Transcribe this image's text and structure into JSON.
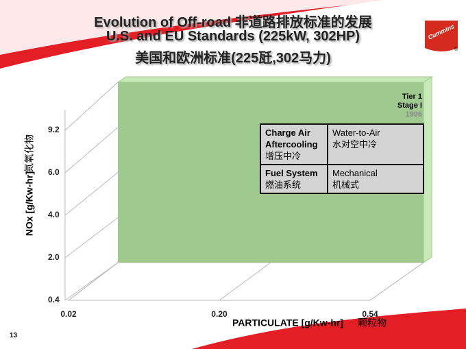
{
  "title_lines": [
    "Evolution of Off-road 非道路排放标准的发展",
    "U.S. and EU Standards (225kW, 302HP)",
    "美国和欧洲标准(225瓩,302马力)"
  ],
  "chart_data": {
    "type": "region",
    "x_label": "PARTICULATE [g/Kw-hr]",
    "x_label_cn": "颗粒物",
    "y_label": "NOx  [g/Kw-hr]",
    "y_label_cn": "氮氧化物",
    "xticks": [
      0.02,
      {
        "value": 0.2,
        "label": "0.20"
      },
      0.54
    ],
    "yticks": [
      0.4,
      {
        "value": 2,
        "label": "2.0"
      },
      {
        "value": 4,
        "label": "4.0"
      },
      {
        "value": 6,
        "label": "6.0"
      },
      9.2
    ],
    "xlim": [
      0.02,
      0.54
    ],
    "ylim": [
      0.4,
      9.2
    ],
    "region": {
      "x": [
        0.02,
        0.54
      ],
      "y": [
        0.4,
        9.2
      ],
      "color": "#9fc98f"
    },
    "annotations": [
      "Tier 1",
      "Stage I",
      "1996"
    ]
  },
  "table": {
    "rows": [
      [
        "Charge Air Aftercooling",
        "增压中冷",
        "Water-to-Air",
        "水对空中冷"
      ],
      [
        "Fuel System",
        "燃油系统",
        "Mechanical",
        "机械式"
      ]
    ]
  },
  "page_number": "13"
}
